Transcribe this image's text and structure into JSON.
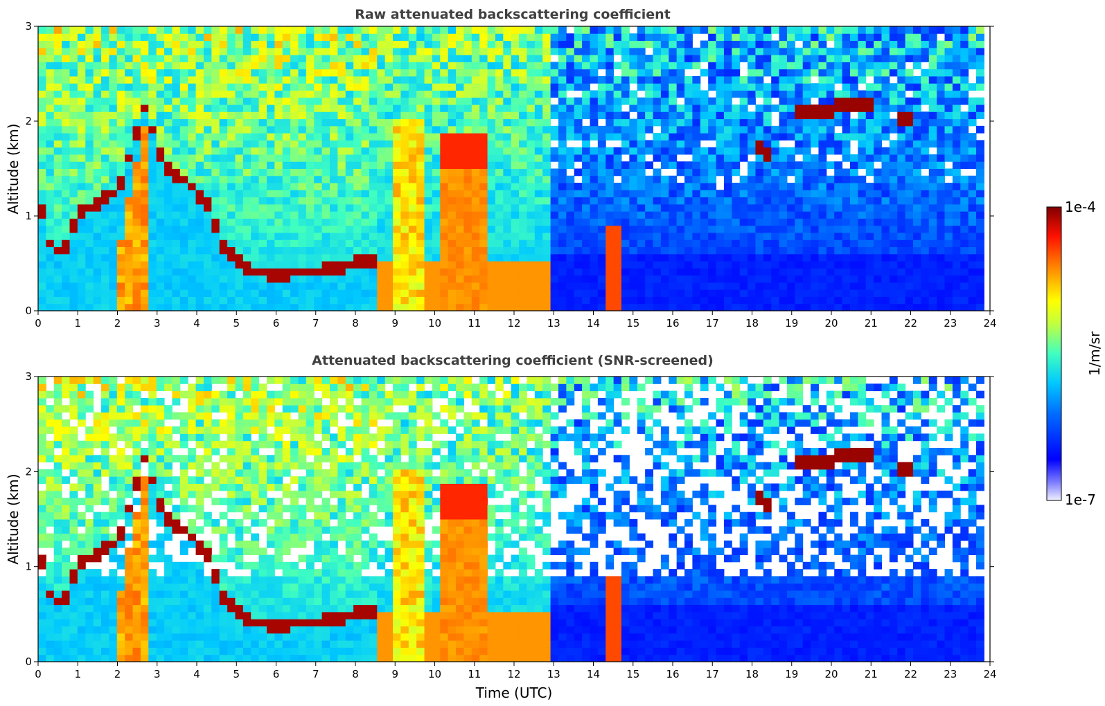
{
  "chart_data": [
    {
      "type": "heatmap",
      "title": "Raw attenuated backscattering coefficient",
      "xlabel": "",
      "ylabel": "Altitude (km)",
      "xlim": [
        0,
        24
      ],
      "ylim": [
        0,
        3
      ],
      "xticks": [
        "0",
        "1",
        "2",
        "3",
        "4",
        "5",
        "6",
        "7",
        "8",
        "9",
        "10",
        "11",
        "12",
        "13",
        "14",
        "15",
        "16",
        "17",
        "18",
        "19",
        "20",
        "21",
        "22",
        "23",
        "24"
      ],
      "yticks": [
        "0",
        "1",
        "2",
        "3"
      ],
      "features": [
        {
          "name": "boundary layer top",
          "t": [
            0,
            0.3,
            0.6,
            1,
            1.5,
            2,
            2.7,
            3.2,
            3.8,
            4.3,
            4.7,
            5.2,
            6,
            7,
            8,
            8.6
          ],
          "z": [
            1.2,
            0.7,
            0.6,
            1.0,
            1.15,
            1.25,
            2.15,
            1.5,
            1.35,
            1.1,
            0.65,
            0.45,
            0.38,
            0.42,
            0.5,
            0.55
          ]
        },
        {
          "name": "cloud band",
          "t": [
            19,
            19.5,
            20,
            20.5,
            21.1
          ],
          "z": [
            2.12,
            2.08,
            2.12,
            2.2,
            2.15
          ]
        },
        {
          "name": "cloud band",
          "t": [
            21.6,
            22
          ],
          "z": [
            2.0,
            2.05
          ]
        },
        {
          "name": "cloud band",
          "t": [
            18,
            18.5
          ],
          "z": [
            1.85,
            1.55
          ]
        },
        {
          "name": "dense cloud",
          "t": [
            10.2,
            11.4
          ],
          "z": [
            0,
            1.9
          ]
        },
        {
          "name": "dense cloud",
          "t": [
            8.9,
            9.7
          ],
          "z": [
            0,
            2.0
          ]
        }
      ],
      "colorbar": {
        "label": "1/m/sr",
        "min": "1e-7",
        "max": "1e-4",
        "scale": "log",
        "colormap": "jet"
      }
    },
    {
      "type": "heatmap",
      "title": "Attenuated backscattering coefficient (SNR-screened)",
      "xlabel": "Time (UTC)",
      "ylabel": "Altitude (km)",
      "xlim": [
        0,
        24
      ],
      "ylim": [
        0,
        3
      ],
      "xticks": [
        "0",
        "1",
        "2",
        "3",
        "4",
        "5",
        "6",
        "7",
        "8",
        "9",
        "10",
        "11",
        "12",
        "13",
        "14",
        "15",
        "16",
        "17",
        "18",
        "19",
        "20",
        "21",
        "22",
        "23",
        "24"
      ],
      "yticks": [
        "0",
        "1",
        "2",
        "3"
      ],
      "colorbar": {
        "label": "1/m/sr",
        "min": "1e-7",
        "max": "1e-4",
        "scale": "log",
        "colormap": "jet"
      }
    }
  ]
}
